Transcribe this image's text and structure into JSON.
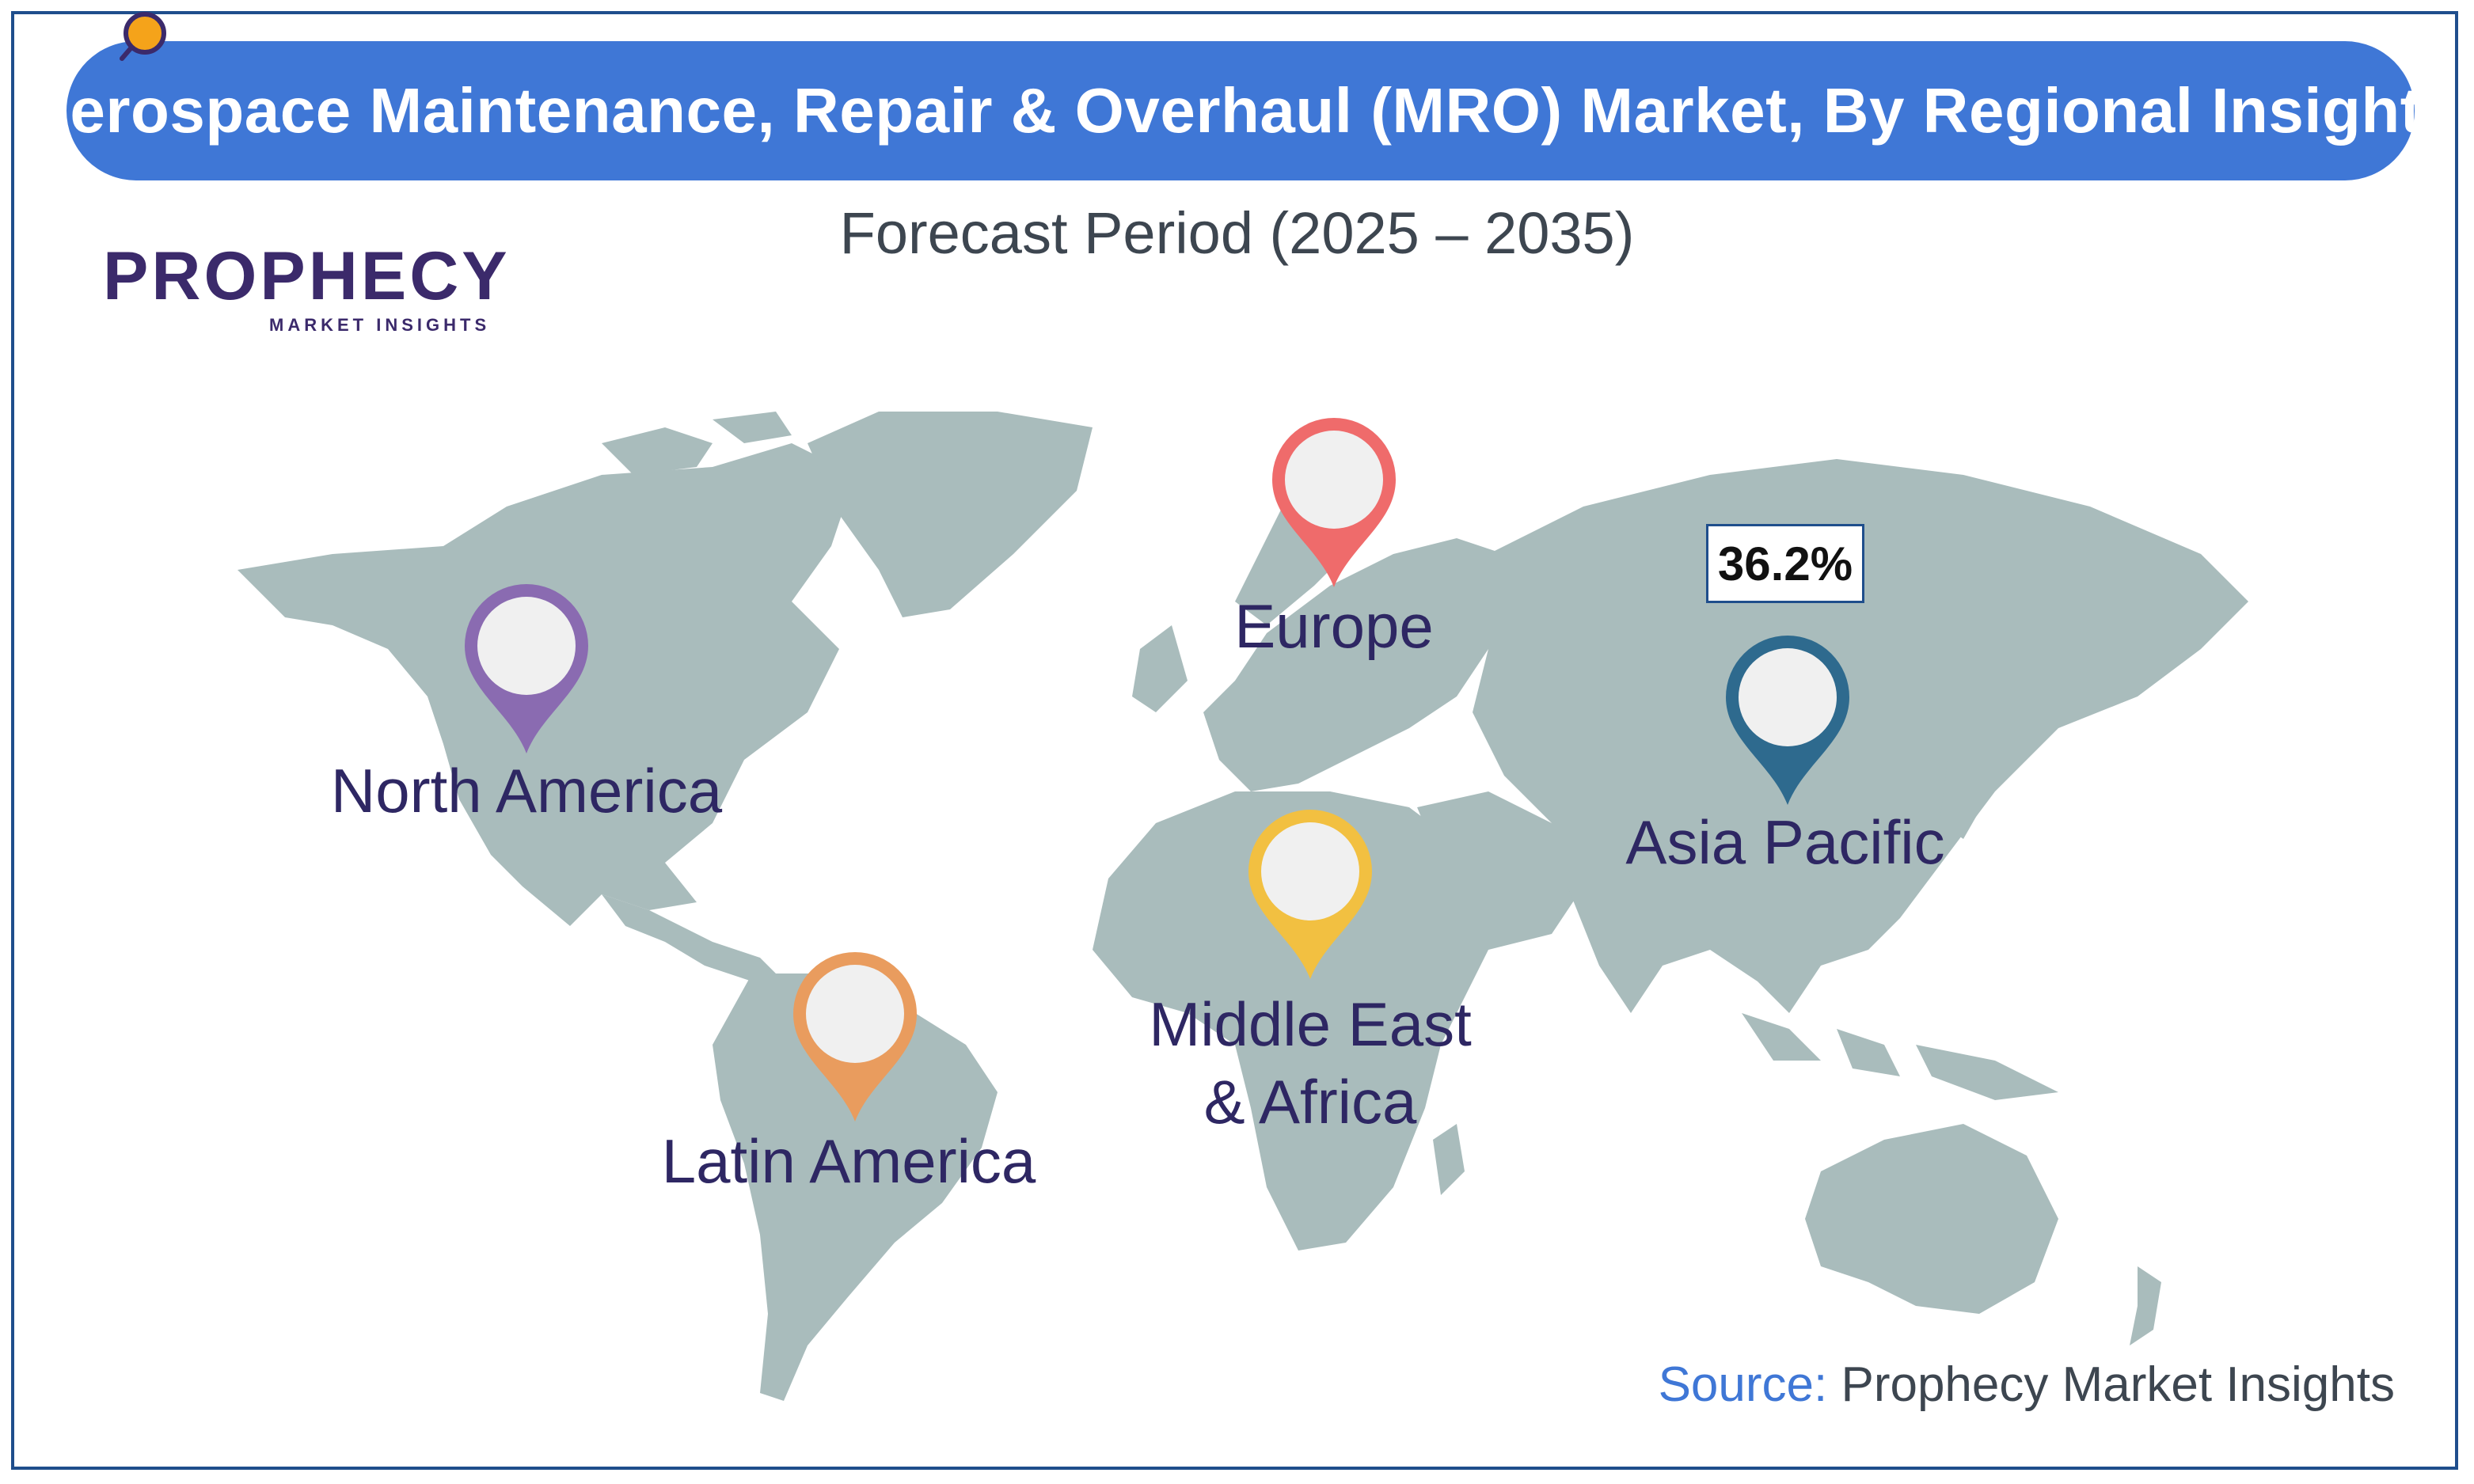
{
  "header": {
    "title": "Aerospace Maintenance, Repair & Overhaul (MRO) Market, By Regional Insights",
    "subtitle": "Forecast Period (2025 – 2035)"
  },
  "logo": {
    "name": "PROPHECY",
    "tagline": "MARKET INSIGHTS"
  },
  "regions": [
    {
      "name": "North America",
      "pin_color": "#8a6bb1"
    },
    {
      "name": "Europe",
      "pin_color": "#ef6b6b"
    },
    {
      "name": "Asia Pacific",
      "pin_color": "#2e6a8e",
      "value": "36.2%"
    },
    {
      "name": "Middle East & Africa",
      "line1": "Middle East",
      "line2": "& Africa",
      "pin_color": "#f2c041"
    },
    {
      "name": "Latin America",
      "pin_color": "#e99c5e"
    }
  ],
  "source": {
    "label": "Source:",
    "value": "Prophecy Market Insights"
  },
  "colors": {
    "title_bar": "#3f77d6",
    "land": "#a9bcbc",
    "border": "#1f4e8c",
    "region_text": "#2e2763"
  }
}
